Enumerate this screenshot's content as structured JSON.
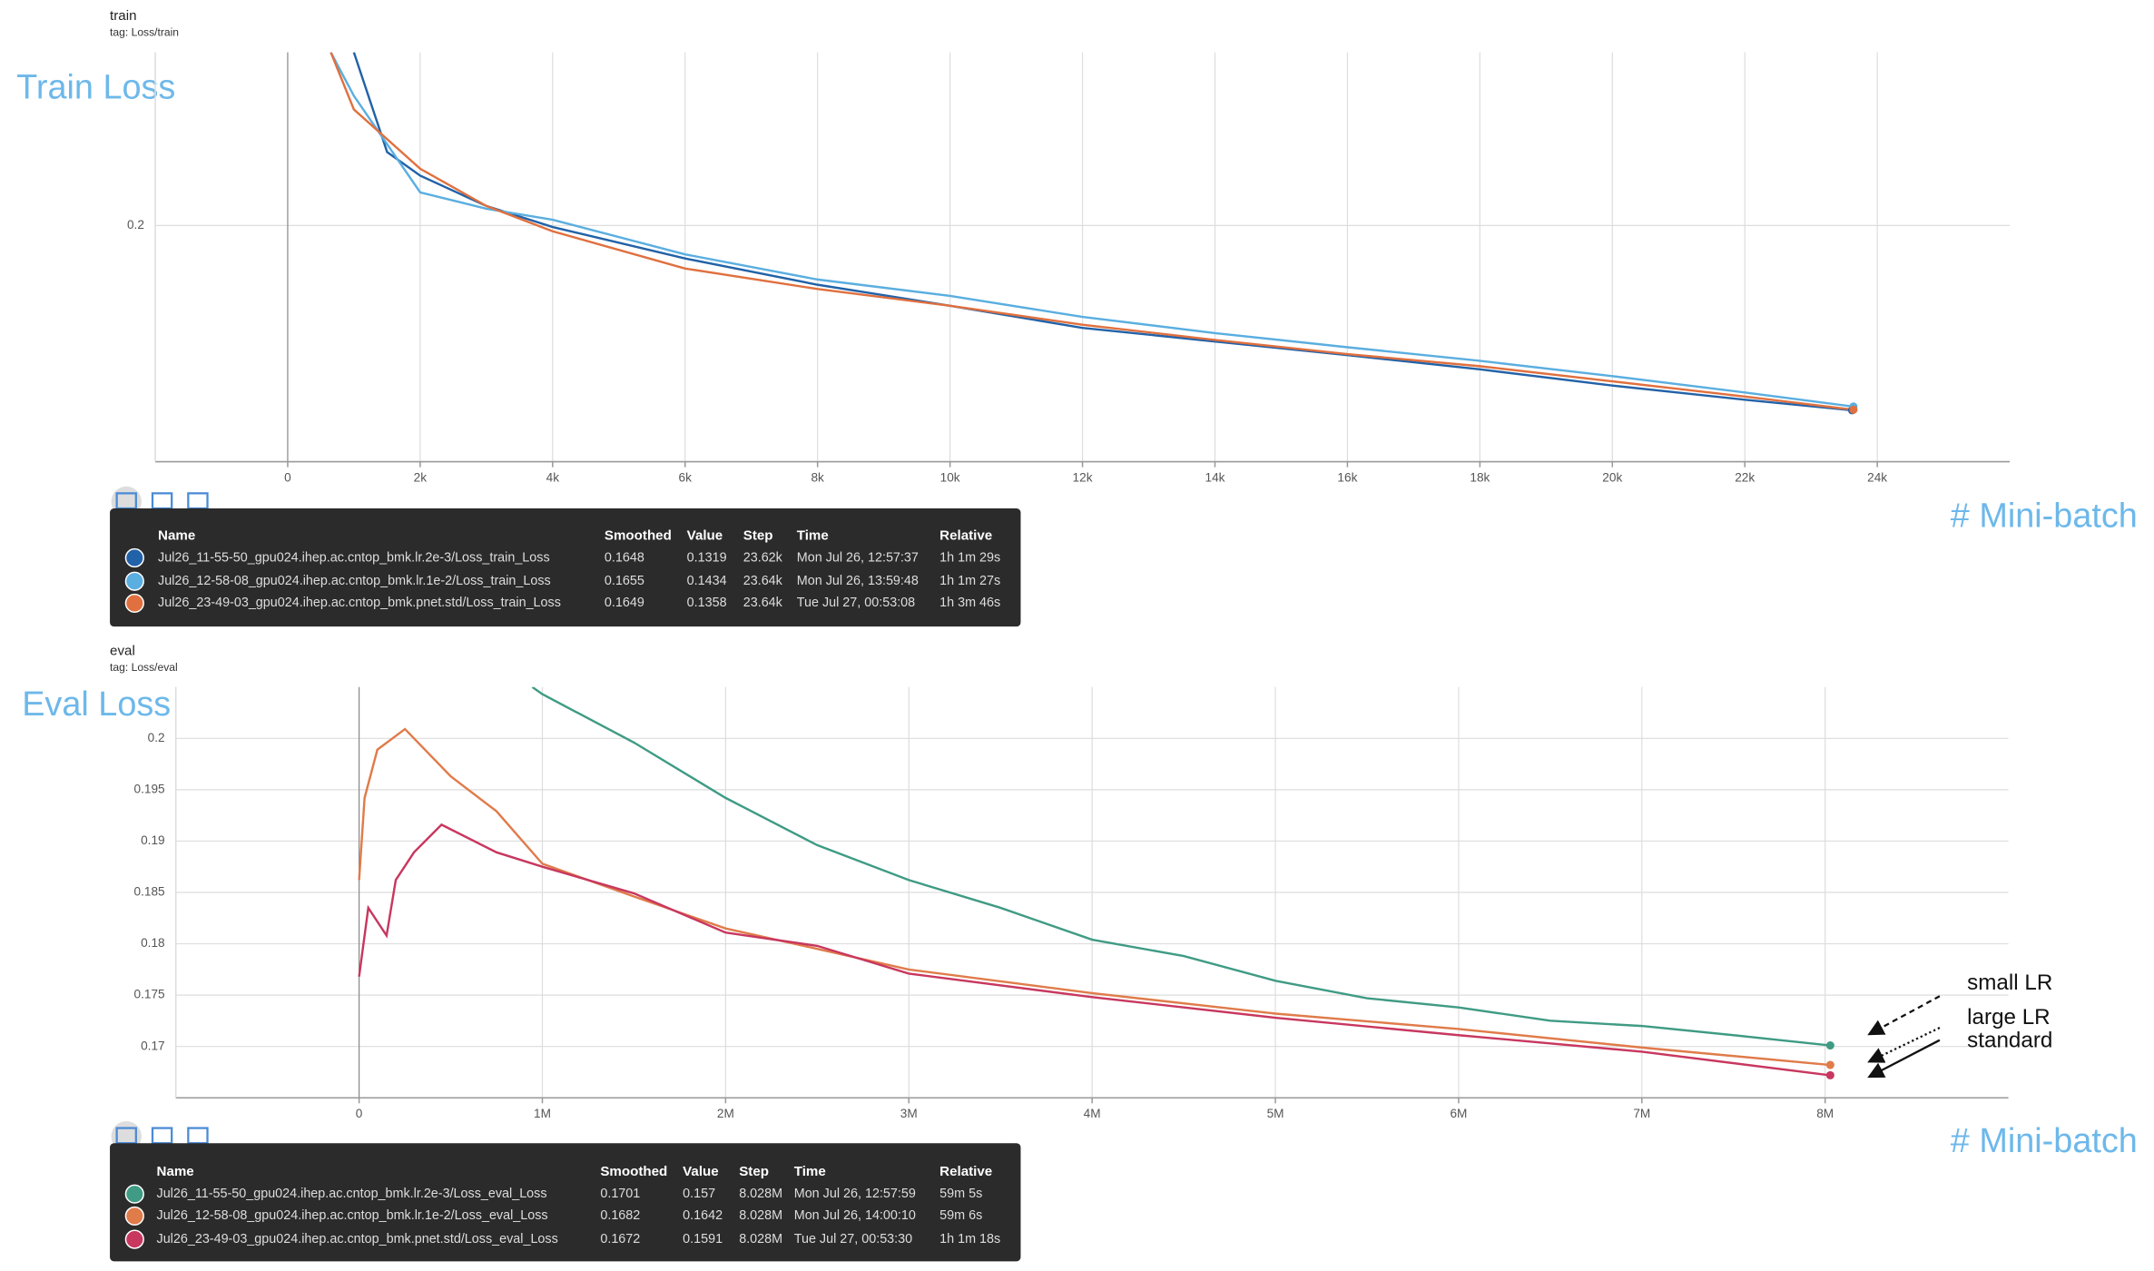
{
  "chart_data": [
    {
      "type": "line",
      "title": "train",
      "subtitle": "tag: Loss/train",
      "annotation": "Train Loss",
      "xlabel": "# Mini-batch",
      "xlim": [
        -2000,
        26000
      ],
      "ylim": [
        0.155,
        0.233
      ],
      "xticks": [
        0,
        {
          "value": 2000,
          "label": "2k"
        },
        {
          "value": 4000,
          "label": "4k"
        },
        {
          "value": 6000,
          "label": "6k"
        },
        {
          "value": 8000,
          "label": "8k"
        },
        {
          "value": 10000,
          "label": "10k"
        },
        {
          "value": 12000,
          "label": "12k"
        },
        {
          "value": 14000,
          "label": "14k"
        },
        {
          "value": 16000,
          "label": "16k"
        },
        {
          "value": 18000,
          "label": "18k"
        },
        {
          "value": 20000,
          "label": "20k"
        },
        {
          "value": 22000,
          "label": "22k"
        },
        {
          "value": 24000,
          "label": "24k"
        }
      ],
      "yticks": [
        0.2
      ],
      "grid": true,
      "series": [
        {
          "name": "Jul26_11-55-50_gpu024.ihep.ac.cntop_bmk.lr.2e-3/Loss_train_Loss",
          "color": "#2262a8",
          "x": [
            1000,
            1500,
            2000,
            3000,
            4000,
            6000,
            8000,
            10000,
            12000,
            14000,
            16000,
            18000,
            20000,
            22000,
            23620
          ],
          "values": [
            0.233,
            0.214,
            0.2095,
            0.2037,
            0.1997,
            0.1937,
            0.1887,
            0.1847,
            0.1805,
            0.1779,
            0.1753,
            0.1726,
            0.1695,
            0.1668,
            0.1648
          ]
        },
        {
          "name": "Jul26_12-58-08_gpu024.ihep.ac.cntop_bmk.lr.1e-2/Loss_train_Loss",
          "color": "#5aaee0",
          "x": [
            650,
            1000,
            2000,
            3000,
            4000,
            6000,
            8000,
            10000,
            12000,
            14000,
            16000,
            18000,
            20000,
            22000,
            23640
          ],
          "values": [
            0.233,
            0.2247,
            0.2063,
            0.2032,
            0.2011,
            0.1945,
            0.1897,
            0.1866,
            0.1826,
            0.1795,
            0.1768,
            0.1742,
            0.1713,
            0.1682,
            0.1655
          ]
        },
        {
          "name": "Jul26_23-49-03_gpu024.ihep.ac.cntop_bmk.pnet.std/Loss_train_Loss",
          "color": "#e0703f",
          "x": [
            650,
            1000,
            2000,
            3000,
            4000,
            6000,
            8000,
            10000,
            12000,
            14000,
            16000,
            18000,
            20000,
            22000,
            23640
          ],
          "values": [
            0.233,
            0.2221,
            0.2108,
            0.2037,
            0.1989,
            0.1918,
            0.1879,
            0.1847,
            0.1811,
            0.1782,
            0.1755,
            0.1732,
            0.1703,
            0.1674,
            0.1649
          ]
        }
      ],
      "tooltip": {
        "columns": [
          "Name",
          "Smoothed",
          "Value",
          "Step",
          "Time",
          "Relative"
        ],
        "rows": [
          [
            "0.1648",
            "0.1319",
            "23.62k",
            "Mon Jul 26, 12:57:37",
            "1h 1m 29s"
          ],
          [
            "0.1655",
            "0.1434",
            "23.64k",
            "Mon Jul 26, 13:59:48",
            "1h 1m 27s"
          ],
          [
            "0.1649",
            "0.1358",
            "23.64k",
            "Tue Jul 27, 00:53:08",
            "1h 3m 46s"
          ]
        ]
      }
    },
    {
      "type": "line",
      "title": "eval",
      "subtitle": "tag: Loss/eval",
      "annotation": "Eval Loss",
      "xlabel": "# Mini-batch",
      "xlim": [
        -1000000,
        9000000
      ],
      "ylim": [
        0.165,
        0.205
      ],
      "xticks": [
        0,
        {
          "value": 1000000,
          "label": "1M"
        },
        {
          "value": 2000000,
          "label": "2M"
        },
        {
          "value": 3000000,
          "label": "3M"
        },
        {
          "value": 4000000,
          "label": "4M"
        },
        {
          "value": 5000000,
          "label": "5M"
        },
        {
          "value": 6000000,
          "label": "6M"
        },
        {
          "value": 7000000,
          "label": "7M"
        },
        {
          "value": 8000000,
          "label": "8M"
        }
      ],
      "yticks": [
        0.17,
        0.175,
        0.18,
        0.185,
        0.19,
        0.195,
        0.2
      ],
      "grid": true,
      "labels": [
        "small LR",
        "large LR",
        "standard"
      ],
      "series": [
        {
          "name": "Jul26_11-55-50_gpu024.ihep.ac.cntop_bmk.lr.2e-3/Loss_eval_Loss",
          "color": "#3f9b84",
          "x": [
            945000,
            1000000,
            1500000,
            2000000,
            2500000,
            3000000,
            3500000,
            4000000,
            4500000,
            5000000,
            5500000,
            6000000,
            6500000,
            7000000,
            7500000,
            8028000
          ],
          "values": [
            0.205,
            0.2043,
            0.1996,
            0.1942,
            0.1896,
            0.1862,
            0.1835,
            0.1804,
            0.1788,
            0.1764,
            0.1747,
            0.1738,
            0.1725,
            0.172,
            0.1711,
            0.1701
          ]
        },
        {
          "name": "Jul26_12-58-08_gpu024.ihep.ac.cntop_bmk.lr.1e-2/Loss_eval_Loss",
          "color": "#e07b4a",
          "x": [
            0,
            30000,
            100000,
            250000,
            500000,
            750000,
            1000000,
            1500000,
            2000000,
            2500000,
            3000000,
            4000000,
            5000000,
            6000000,
            7000000,
            8028000
          ],
          "values": [
            0.1862,
            0.1942,
            0.1989,
            0.2009,
            0.1963,
            0.1929,
            0.1878,
            0.1846,
            0.1815,
            0.1795,
            0.1775,
            0.1752,
            0.1732,
            0.1717,
            0.1699,
            0.1682
          ]
        },
        {
          "name": "Jul26_23-49-03_gpu024.ihep.ac.cntop_bmk.pnet.std/Loss_eval_Loss",
          "color": "#c8375f",
          "x": [
            0,
            50000,
            150000,
            200000,
            300000,
            450000,
            750000,
            1000000,
            1500000,
            2000000,
            2500000,
            3000000,
            4000000,
            5000000,
            6000000,
            7000000,
            8028000
          ],
          "values": [
            0.1768,
            0.1835,
            0.1808,
            0.1862,
            0.1889,
            0.1916,
            0.1889,
            0.1875,
            0.1849,
            0.1811,
            0.1798,
            0.1771,
            0.1748,
            0.1728,
            0.1711,
            0.1695,
            0.1672
          ]
        }
      ],
      "tooltip": {
        "columns": [
          "Name",
          "Smoothed",
          "Value",
          "Step",
          "Time",
          "Relative"
        ],
        "rows": [
          [
            "0.1701",
            "0.157",
            "8.028M",
            "Mon Jul 26, 12:57:59",
            "59m 5s"
          ],
          [
            "0.1682",
            "0.1642",
            "8.028M",
            "Mon Jul 26, 14:00:10",
            "59m 6s"
          ],
          [
            "0.1672",
            "0.1591",
            "8.028M",
            "Tue Jul 27, 00:53:30",
            "1h 1m 18s"
          ]
        ]
      }
    }
  ]
}
